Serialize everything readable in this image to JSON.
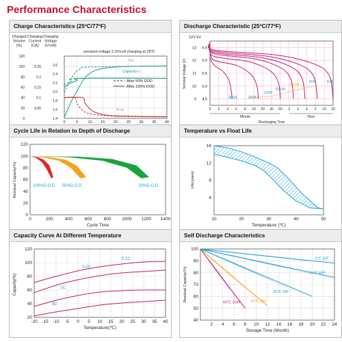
{
  "page": {
    "title": "Performance Characteristics"
  },
  "panels": [
    "Charge Characteristics (25ºC/77ºF)",
    "Discharge Characteristic (25ºC/77ºF)",
    "Cycle Life in Relation to Depth of Discharge",
    "Temperature vs Float Life",
    "Capacity Curve At Different Temperature",
    "Self Discharge Characteristics"
  ],
  "colors": {
    "title": "#c8102e",
    "red": "#cc2222",
    "teal": "#1a9a8a",
    "cyan": "#1aa0d8",
    "magenta": "#c2186f",
    "orange": "#f7a21b",
    "green": "#1aa33a"
  },
  "chart_data": [
    {
      "type": "line",
      "title": "Charge Characteristics (25ºC/77ºF)",
      "xlabel": "Charging Time ( Hour )",
      "x_ticks": [
        0,
        5,
        10,
        15,
        20,
        25,
        30,
        35,
        40
      ],
      "xlim": [
        0,
        40
      ],
      "axis_headers": [
        "Charged Volume (%)",
        "Charging Current (CA)",
        "Charging Voltage (V/cell)"
      ],
      "volume_ticks": [
        0,
        20,
        40,
        60,
        80,
        100,
        120
      ],
      "current_ticks": [
        0.05,
        0.1,
        0.15,
        0.2,
        0.25
      ],
      "voltage_ticks": [
        1.4,
        1.6,
        1.8,
        2.0,
        2.2,
        2.4,
        2.6
      ],
      "annotations": [
        "constant voltage 2.3V/cell charging at 25ºC",
        "V-c",
        "Capacity-c",
        "I—c"
      ],
      "legend": [
        "After 50% DOD",
        "After 100% DOD"
      ],
      "legend_styles": [
        "dashed",
        "solid"
      ],
      "series": [
        {
          "style": "solid",
          "points": [
            [
              0,
              2.1
            ],
            [
              2,
              2.18
            ],
            [
              5,
              2.25
            ],
            [
              7,
              2.3
            ],
            [
              40,
              2.3
            ]
          ],
          "scale": "voltage"
        },
        {
          "style": "dashed",
          "points": [
            [
              0,
              2.16
            ],
            [
              3,
              2.24
            ],
            [
              5,
              2.3
            ],
            [
              40,
              2.3
            ]
          ],
          "scale": "voltage"
        },
        {
          "style": "solid",
          "points": [
            [
              0,
              2
            ],
            [
              3,
              35
            ],
            [
              6,
              62
            ],
            [
              8,
              78
            ],
            [
              12,
              92
            ],
            [
              20,
              99
            ],
            [
              40,
              101
            ]
          ],
          "scale": "volume"
        },
        {
          "style": "dashed",
          "points": [
            [
              0,
              50
            ],
            [
              2,
              70
            ],
            [
              4,
              86
            ],
            [
              6,
              95
            ],
            [
              10,
              99
            ],
            [
              40,
              101
            ]
          ],
          "scale": "volume"
        },
        {
          "style": "solid",
          "points": [
            [
              0,
              0.1
            ],
            [
              7,
              0.1
            ],
            [
              8,
              0.075
            ],
            [
              10,
              0.045
            ],
            [
              13,
              0.025
            ],
            [
              20,
              0.012
            ],
            [
              40,
              0.008
            ]
          ],
          "scale": "current"
        },
        {
          "style": "dashed",
          "points": [
            [
              0,
              0.1
            ],
            [
              4,
              0.1
            ],
            [
              5,
              0.07
            ],
            [
              7,
              0.04
            ],
            [
              10,
              0.022
            ],
            [
              20,
              0.01
            ],
            [
              40,
              0.007
            ]
          ],
          "scale": "current"
        }
      ]
    },
    {
      "type": "line",
      "title": "Discharge Characteristic (25ºC/77ºF)",
      "ylabel": "Terminal Voltage (V)",
      "xlabel": "Discharging Time",
      "y_header": "12V  6V",
      "y_ticks_12v": [
        9,
        10,
        11,
        12,
        13
      ],
      "y_ticks_6v": [
        4.5,
        5.0,
        5.5,
        6.0,
        6.5
      ],
      "ylim": [
        8.5,
        13.5
      ],
      "x_ticks": [
        "0",
        "2",
        "4",
        "6",
        "8",
        "10",
        "20",
        "30",
        "60",
        "2",
        "3",
        "4",
        "5",
        "10",
        "20"
      ],
      "x_units": [
        "Minute",
        "Hour"
      ],
      "series_labels": [
        "600A",
        "200A",
        "120A",
        "50.0A",
        "34.0A",
        "20A",
        "10A"
      ],
      "series_label_colors": [
        "#1aa0d8",
        "#1aa0d8",
        "#1aa0d8",
        "#1aa0d8",
        "#f7a21b",
        "#1aa0d8",
        "#1aa0d8"
      ],
      "end_times": [
        2.5,
        5.5,
        8,
        9.5,
        10.8,
        12.2,
        14
      ],
      "start_voltages": [
        11.6,
        12.0,
        12.3,
        12.5,
        12.6,
        12.7,
        12.8
      ]
    },
    {
      "type": "area",
      "title": "Cycle Life in Relation to Depth of Discharge",
      "xlabel": "Cycle Time",
      "ylabel": "Residual Capacity(%)",
      "x_ticks": [
        0,
        200,
        400,
        600,
        800,
        1000,
        1200,
        1400
      ],
      "y_ticks": [
        0,
        20,
        40,
        60,
        80,
        100,
        120
      ],
      "xlim": [
        0,
        1400
      ],
      "ylim": [
        0,
        120
      ],
      "series": [
        {
          "name": "100%D.O.D",
          "color": "#e3262d",
          "lower": [
            [
              0,
              100
            ],
            [
              60,
              97
            ],
            [
              120,
              90
            ],
            [
              170,
              78
            ],
            [
              220,
              62
            ]
          ],
          "upper": [
            [
              0,
              100
            ],
            [
              80,
              98
            ],
            [
              140,
              94
            ],
            [
              200,
              84
            ],
            [
              240,
              64
            ]
          ]
        },
        {
          "name": "50%D.O.D",
          "color": "#f7a21b",
          "lower": [
            [
              0,
              100
            ],
            [
              150,
              97
            ],
            [
              300,
              92
            ],
            [
              420,
              80
            ],
            [
              520,
              62
            ]
          ],
          "upper": [
            [
              0,
              100
            ],
            [
              200,
              98
            ],
            [
              360,
              94
            ],
            [
              480,
              84
            ],
            [
              580,
              64
            ]
          ]
        },
        {
          "name": "30%D.O.D",
          "color": "#1aa33a",
          "lower": [
            [
              0,
              100
            ],
            [
              400,
              98
            ],
            [
              750,
              92
            ],
            [
              1000,
              80
            ],
            [
              1150,
              62
            ]
          ],
          "upper": [
            [
              0,
              100
            ],
            [
              500,
              99
            ],
            [
              850,
              95
            ],
            [
              1100,
              84
            ],
            [
              1230,
              64
            ]
          ]
        }
      ]
    },
    {
      "type": "area",
      "title": "Temperature vs Float Life",
      "xlabel": "Temperature (℃)",
      "ylabel": "Life(years)",
      "x_ticks": [
        10,
        20,
        30,
        40,
        50
      ],
      "y_ticks": [
        4,
        8,
        12,
        16
      ],
      "xlim": [
        10,
        50
      ],
      "ylim": [
        0,
        16
      ],
      "upper": [
        [
          10,
          16
        ],
        [
          15,
          15.5
        ],
        [
          20,
          14.6
        ],
        [
          25,
          13.4
        ],
        [
          30,
          12
        ],
        [
          33,
          11
        ],
        [
          37,
          8.5
        ],
        [
          42,
          5
        ],
        [
          48,
          1.6
        ]
      ],
      "lower": [
        [
          10,
          14
        ],
        [
          15,
          13.3
        ],
        [
          20,
          12.5
        ],
        [
          25,
          11.4
        ],
        [
          28,
          10.3
        ],
        [
          31,
          8.5
        ],
        [
          35,
          5.8
        ],
        [
          40,
          3.2
        ],
        [
          45,
          1.6
        ],
        [
          50,
          1.4
        ]
      ]
    },
    {
      "type": "line",
      "title": "Capacity Curve At Different Temperature",
      "xlabel": "Temperature(℃)",
      "ylabel": "Capacity(%)",
      "x_ticks": [
        -20,
        -15,
        -10,
        -5,
        0,
        5,
        10,
        15,
        20,
        25,
        30,
        35,
        40
      ],
      "y_ticks": [
        20,
        40,
        60,
        80,
        100,
        120
      ],
      "xlim": [
        -20,
        40
      ],
      "ylim": [
        20,
        120
      ],
      "series": [
        {
          "name": "0.1C",
          "color": "#c2186f",
          "values": [
            [
              -20,
              71
            ],
            [
              -10,
              80
            ],
            [
              0,
              88
            ],
            [
              10,
              94
            ],
            [
              20,
              98
            ],
            [
              30,
              101
            ],
            [
              40,
              102
            ]
          ]
        },
        {
          "name": "0.2C",
          "color": "#c2186f",
          "values": [
            [
              -20,
              56
            ],
            [
              -10,
              67
            ],
            [
              0,
              75
            ],
            [
              10,
              81
            ],
            [
              20,
              85
            ],
            [
              30,
              87
            ],
            [
              40,
              89
            ]
          ]
        },
        {
          "name": "1C",
          "color": "#c2186f",
          "values": [
            [
              -20,
              36
            ],
            [
              -10,
              45
            ],
            [
              0,
              52
            ],
            [
              10,
              57
            ],
            [
              20,
              59
            ],
            [
              30,
              60
            ],
            [
              40,
              60
            ]
          ]
        },
        {
          "name": "3C",
          "color": "#c2186f",
          "values": [
            [
              -20,
              22
            ],
            [
              -10,
              28
            ],
            [
              0,
              33
            ],
            [
              10,
              38
            ],
            [
              20,
              41
            ],
            [
              30,
              43
            ],
            [
              40,
              45
            ]
          ]
        }
      ]
    },
    {
      "type": "line",
      "title": "Self Discharge Characteristics",
      "xlabel": "Storage Time (Month)",
      "ylabel": "Residual Capacity(%)",
      "x_ticks": [
        2,
        4,
        6,
        8,
        10,
        12,
        14,
        16,
        18,
        20,
        22,
        24
      ],
      "y_ticks": [
        40,
        50,
        60,
        70,
        80,
        90,
        100
      ],
      "xlim": [
        0,
        24
      ],
      "ylim": [
        40,
        100
      ],
      "series": [
        {
          "name": "0℃ 32F",
          "color": "#1aa0d8",
          "end": [
            24,
            88
          ]
        },
        {
          "name": "15℃ 59F",
          "color": "#1aa0d8",
          "end": [
            24,
            76
          ]
        },
        {
          "name": "20℃ 68F",
          "color": "#1aa0d8",
          "end": [
            20,
            60
          ]
        },
        {
          "name": "30℃ 86F",
          "color": "#f7a21b",
          "end": [
            12,
            52
          ]
        },
        {
          "name": "40℃ 104F",
          "color": "#c2186f",
          "end": [
            8,
            50
          ]
        }
      ]
    }
  ]
}
